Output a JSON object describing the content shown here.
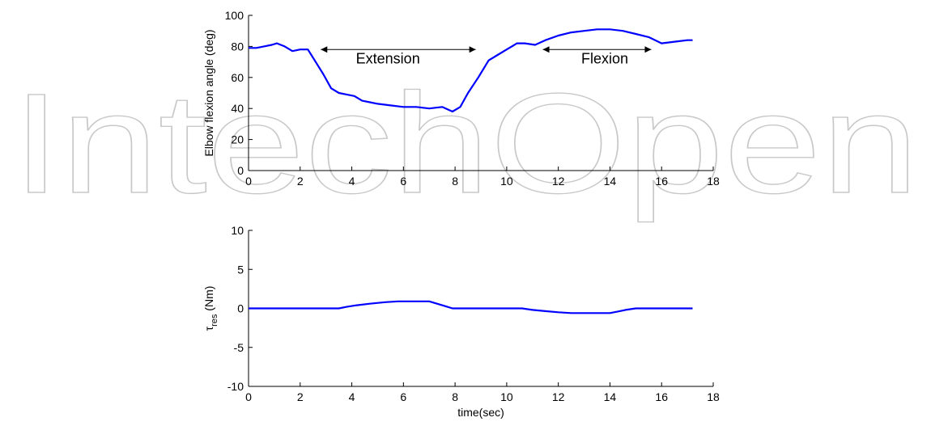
{
  "watermark": "IntechOpen",
  "chart_data": [
    {
      "type": "line",
      "xlabel": "",
      "ylabel": "Elbow flexion angle (deg)",
      "xlim": [
        0,
        18
      ],
      "ylim": [
        0,
        100
      ],
      "xticks": [
        0,
        2,
        4,
        6,
        8,
        10,
        12,
        14,
        16,
        18
      ],
      "yticks": [
        0,
        20,
        40,
        60,
        80,
        100
      ],
      "grid": false,
      "series": [
        {
          "color": "#0000ff",
          "x": [
            0,
            0.3,
            0.6,
            0.9,
            1.1,
            1.4,
            1.7,
            2.0,
            2.3,
            2.6,
            2.9,
            3.2,
            3.5,
            3.8,
            4.1,
            4.4,
            4.7,
            5.0,
            5.5,
            6.0,
            6.5,
            7.0,
            7.5,
            7.9,
            8.2,
            8.5,
            8.9,
            9.3,
            9.7,
            10.0,
            10.4,
            10.7,
            11.1,
            11.5,
            12.0,
            12.5,
            13.0,
            13.5,
            14.0,
            14.5,
            15.0,
            15.5,
            16.0,
            16.5,
            17.0,
            17.2
          ],
          "y": [
            79,
            79,
            80,
            81,
            82,
            80,
            77,
            78,
            78,
            70,
            62,
            53,
            50,
            49,
            48,
            45,
            44,
            43,
            42,
            41,
            41,
            40,
            41,
            38,
            41,
            50,
            60,
            71,
            75,
            78,
            82,
            82,
            81,
            84,
            87,
            89,
            90,
            91,
            91,
            90,
            88,
            86,
            82,
            83,
            84,
            84
          ]
        }
      ],
      "annotations": [
        {
          "text": "Extension",
          "x_start": 2.8,
          "x_end": 8.8,
          "y": 78,
          "text_x": 5.4,
          "text_y": 69
        },
        {
          "text": "Flexion",
          "x_start": 11.4,
          "x_end": 15.6,
          "y": 78,
          "text_x": 13.8,
          "text_y": 69
        }
      ]
    },
    {
      "type": "line",
      "xlabel": "time(sec)",
      "ylabel": "τres (Nm)",
      "ylabel_main": "τ",
      "ylabel_sub": "res",
      "ylabel_rest": " (Nm)",
      "xlim": [
        0,
        18
      ],
      "ylim": [
        -10,
        10
      ],
      "xticks": [
        0,
        2,
        4,
        6,
        8,
        10,
        12,
        14,
        16,
        18
      ],
      "yticks": [
        -10,
        -5,
        0,
        5,
        10
      ],
      "grid": false,
      "series": [
        {
          "color": "#0000ff",
          "x": [
            0,
            3.5,
            3.8,
            4.2,
            4.7,
            5.3,
            5.8,
            6.5,
            7.0,
            7.3,
            7.6,
            7.9,
            8.5,
            10.6,
            11.0,
            11.5,
            12.0,
            12.5,
            13.0,
            13.5,
            14.0,
            14.3,
            14.6,
            15.0,
            15.3,
            17.2
          ],
          "y": [
            0,
            0,
            0.2,
            0.4,
            0.6,
            0.8,
            0.9,
            0.9,
            0.9,
            0.6,
            0.3,
            0,
            0,
            0,
            -0.2,
            -0.35,
            -0.5,
            -0.6,
            -0.6,
            -0.6,
            -0.6,
            -0.4,
            -0.2,
            0,
            0,
            0
          ]
        }
      ]
    }
  ]
}
